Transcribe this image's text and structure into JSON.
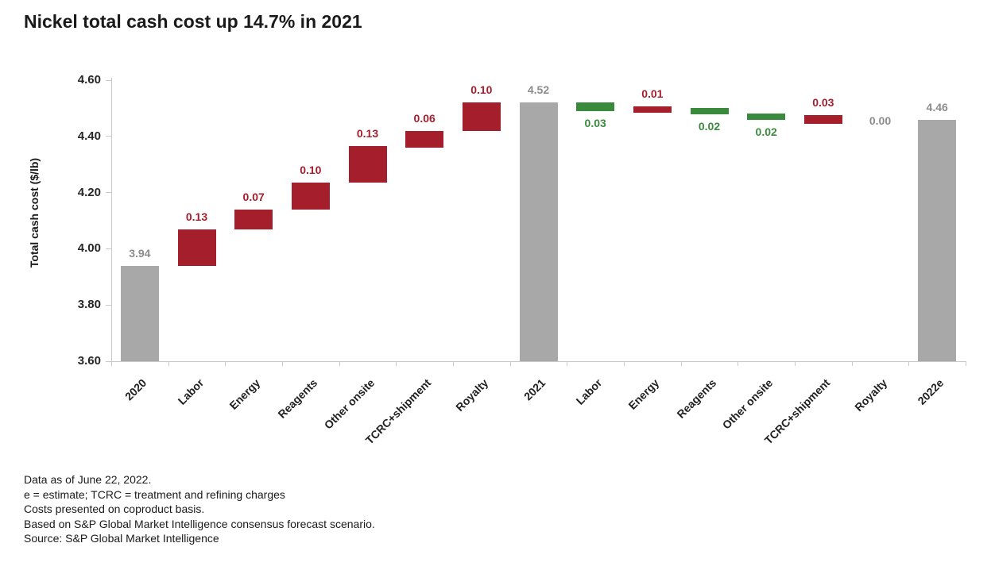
{
  "chart_data": {
    "type": "bar",
    "subtype": "waterfall",
    "title": "Nickel total cash cost up 14.7% in 2021",
    "xlabel": "",
    "ylabel": "Total cash cost ($/lb)",
    "ylim": [
      3.6,
      4.6
    ],
    "grid": false,
    "legend": "none",
    "yticks": [
      {
        "v": 4.6,
        "label": "4.60"
      },
      {
        "v": 4.4,
        "label": "4.40"
      },
      {
        "v": 4.2,
        "label": "4.20"
      },
      {
        "v": 4.0,
        "label": "4.00"
      },
      {
        "v": 3.8,
        "label": "3.80"
      },
      {
        "v": 3.6,
        "label": "3.60"
      }
    ],
    "categories": [
      "2020",
      "Labor",
      "Energy",
      "Reagents",
      "Other onsite",
      "TCRC+shipment",
      "Royalty",
      "2021",
      "Labor",
      "Energy",
      "Reagents",
      "Other onsite",
      "TCRC+shipment",
      "Royalty",
      "2022e"
    ],
    "bars": [
      {
        "category": "2020",
        "kind": "total",
        "total": 3.94,
        "display": "3.94",
        "from": 3.6,
        "to": 3.94,
        "label_pos": "above"
      },
      {
        "category": "Labor",
        "kind": "increase",
        "delta": 0.13,
        "display": "0.13",
        "from": 3.94,
        "to": 4.07,
        "label_pos": "above"
      },
      {
        "category": "Energy",
        "kind": "increase",
        "delta": 0.07,
        "display": "0.07",
        "from": 4.07,
        "to": 4.14,
        "label_pos": "above"
      },
      {
        "category": "Reagents",
        "kind": "increase",
        "delta": 0.1,
        "display": "0.10",
        "from": 4.14,
        "to": 4.235,
        "label_pos": "above"
      },
      {
        "category": "Other onsite",
        "kind": "increase",
        "delta": 0.13,
        "display": "0.13",
        "from": 4.235,
        "to": 4.365,
        "label_pos": "above"
      },
      {
        "category": "TCRC+shipment",
        "kind": "increase",
        "delta": 0.06,
        "display": "0.06",
        "from": 4.36,
        "to": 4.42,
        "label_pos": "above"
      },
      {
        "category": "Royalty",
        "kind": "increase",
        "delta": 0.1,
        "display": "0.10",
        "from": 4.42,
        "to": 4.52,
        "label_pos": "above"
      },
      {
        "category": "2021",
        "kind": "total",
        "total": 4.52,
        "display": "4.52",
        "from": 3.6,
        "to": 4.52,
        "label_pos": "above"
      },
      {
        "category": "Labor",
        "kind": "decrease",
        "delta": -0.03,
        "display": "0.03",
        "from": 4.49,
        "to": 4.52,
        "label_pos": "below"
      },
      {
        "category": "Energy",
        "kind": "increase",
        "delta": 0.01,
        "display": "0.01",
        "from": 4.49,
        "to": 4.5,
        "label_pos": "above"
      },
      {
        "category": "Reagents",
        "kind": "decrease",
        "delta": -0.02,
        "display": "0.02",
        "from": 4.48,
        "to": 4.5,
        "label_pos": "below"
      },
      {
        "category": "Other onsite",
        "kind": "decrease",
        "delta": -0.02,
        "display": "0.02",
        "from": 4.46,
        "to": 4.48,
        "label_pos": "below"
      },
      {
        "category": "TCRC+shipment",
        "kind": "increase",
        "delta": 0.03,
        "display": "0.03",
        "from": 4.445,
        "to": 4.475,
        "label_pos": "above"
      },
      {
        "category": "Royalty",
        "kind": "neutral",
        "delta": 0.0,
        "display": "0.00",
        "level": 4.455,
        "label_pos": "level"
      },
      {
        "category": "2022e",
        "kind": "total",
        "total": 4.46,
        "display": "4.46",
        "from": 3.6,
        "to": 4.46,
        "label_pos": "above"
      }
    ],
    "colors": {
      "increase": "#A41E2C",
      "decrease": "#3A8A3E",
      "total": "#A8A8A8",
      "neutral_label": "#8C8C8C",
      "axis": "#C9C9C9",
      "text": "#1A1A1A"
    },
    "notes": [
      "Data as of June 22, 2022.",
      "e = estimate; TCRC = treatment and refining charges",
      "Costs presented on coproduct basis.",
      "Based on S&P Global Market Intelligence consensus forecast scenario.",
      "Source: S&P Global Market Intelligence"
    ]
  }
}
